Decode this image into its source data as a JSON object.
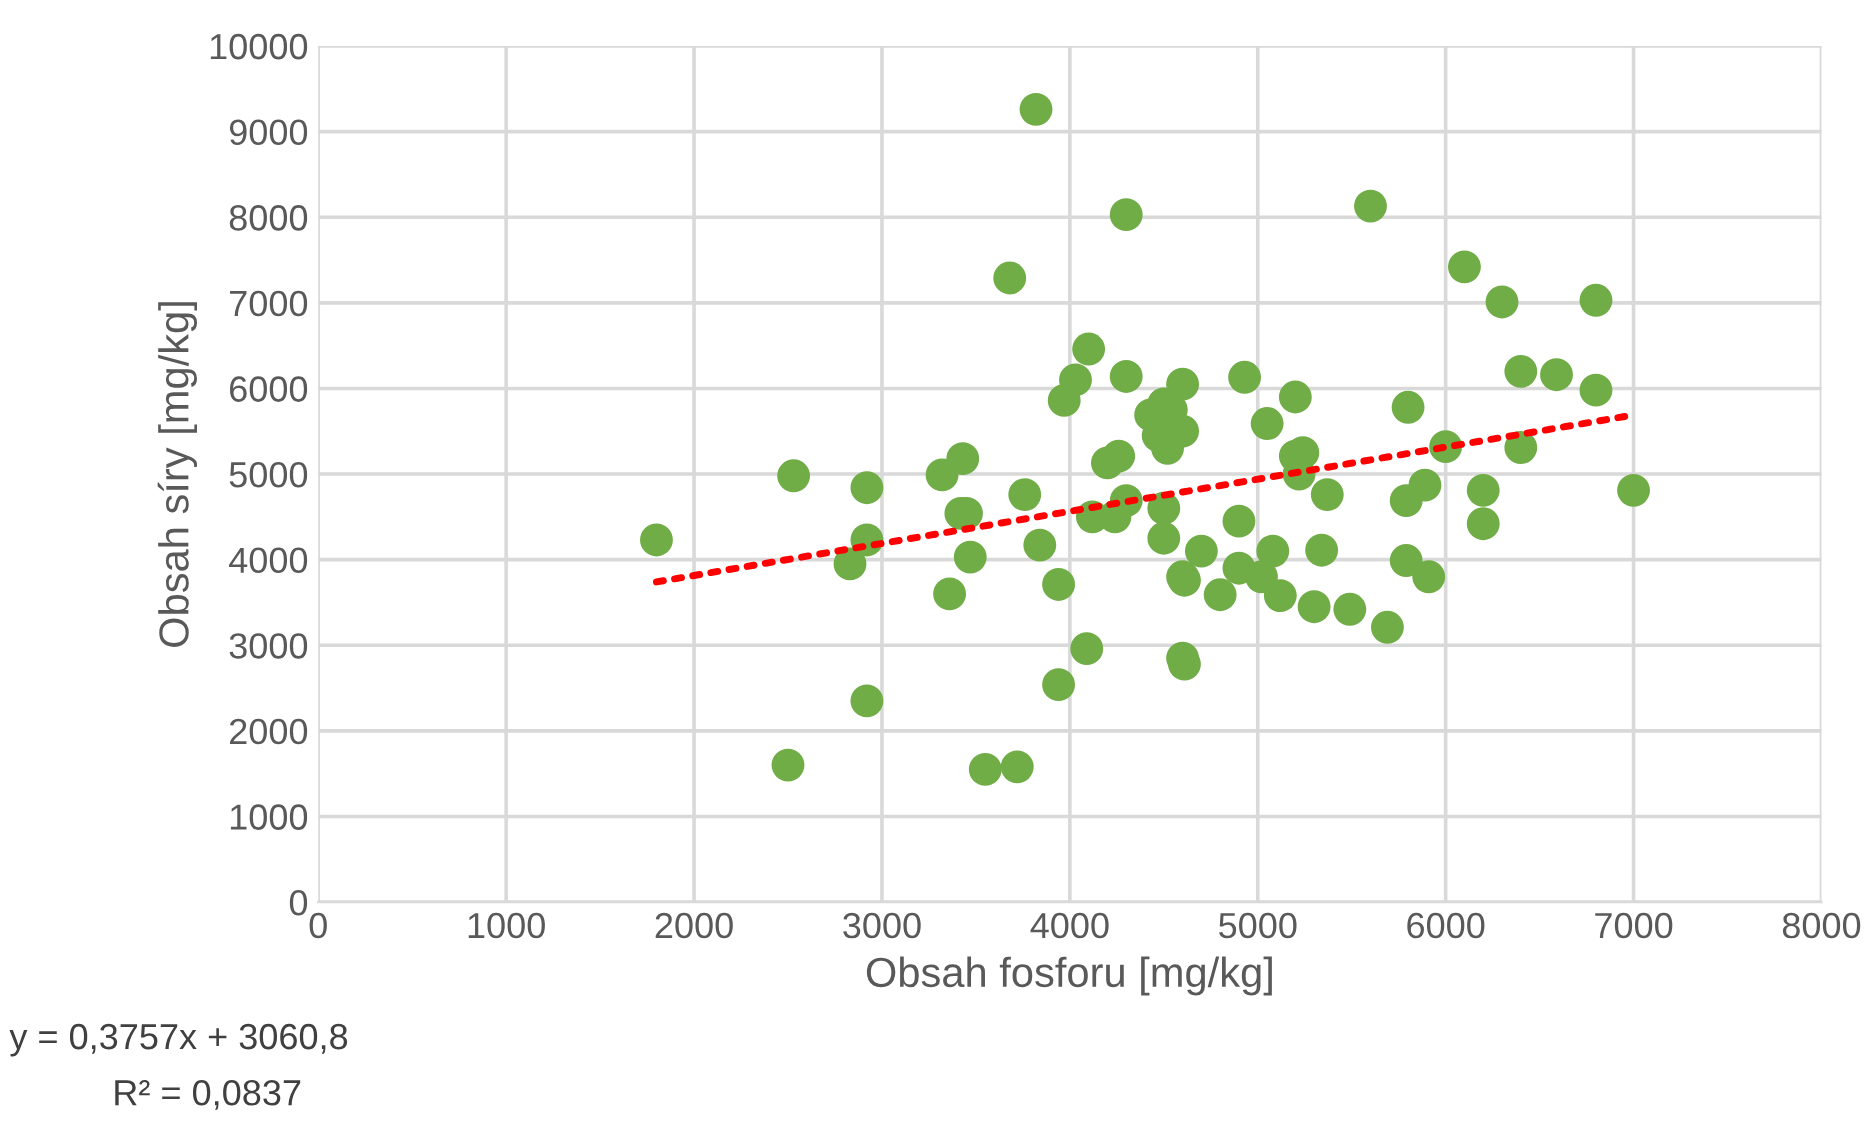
{
  "chart_data": {
    "type": "scatter",
    "xlabel": "Obsah fosforu [mg/kg]",
    "ylabel": "Obsah síry [mg/kg]",
    "xlim": [
      0,
      8000
    ],
    "xticks": [
      0,
      1000,
      2000,
      3000,
      4000,
      5000,
      6000,
      7000,
      8000
    ],
    "ylim": [
      0,
      10000
    ],
    "yticks": [
      0,
      1000,
      2000,
      3000,
      4000,
      5000,
      6000,
      7000,
      8000,
      9000,
      10000
    ],
    "grid": true,
    "legend": false,
    "marker": "circle",
    "annotations": [
      "y = 0,3757x + 3060,8",
      "R² = 0,0837"
    ],
    "series": [
      {
        "color": "#70ad47",
        "x": [
          1800,
          2500,
          2530,
          2830,
          2920,
          2920,
          2920,
          3320,
          3360,
          3420,
          3430,
          3450,
          3470,
          3550,
          3680,
          3720,
          3760,
          3820,
          3840,
          3940,
          3940,
          3970,
          4030,
          4090,
          4100,
          4120,
          4200,
          4240,
          4260,
          4300,
          4300,
          4300,
          4430,
          4470,
          4500,
          4500,
          4500,
          4520,
          4540,
          4600,
          4600,
          4600,
          4610,
          4600,
          4610,
          4700,
          4800,
          4900,
          4900,
          4930,
          5020,
          5050,
          5080,
          5120,
          5200,
          5200,
          5220,
          5240,
          5300,
          5340,
          5370,
          5490,
          5600,
          5690,
          5790,
          5790,
          5800,
          5890,
          5910,
          6000,
          6100,
          6200,
          6200,
          6300,
          6400,
          6400,
          6590,
          6800,
          6800,
          7000
        ],
        "values": [
          4230,
          1600,
          4980,
          3950,
          4840,
          4230,
          2350,
          4990,
          3600,
          4540,
          5180,
          4540,
          4030,
          1550,
          7290,
          1580,
          4760,
          9260,
          4170,
          3710,
          2540,
          5860,
          6100,
          2960,
          6460,
          4500,
          5130,
          4500,
          5210,
          8030,
          6140,
          4690,
          5690,
          5450,
          5820,
          4600,
          4250,
          5300,
          5750,
          5500,
          6050,
          3800,
          3760,
          2850,
          2780,
          4100,
          3590,
          3900,
          4450,
          6130,
          3800,
          5590,
          4100,
          3580,
          5900,
          5210,
          5000,
          5250,
          3450,
          4110,
          4760,
          3420,
          8130,
          3210,
          3990,
          4690,
          5780,
          4870,
          3800,
          5320,
          7420,
          4810,
          4420,
          7010,
          6200,
          5310,
          6160,
          7030,
          5980,
          4810
        ]
      },
      {
        "type": "line",
        "color": "#ff0000",
        "line_style": "dotted",
        "marker": "none",
        "x": [
          1800,
          7000
        ],
        "values": [
          3740,
          5690
        ]
      }
    ]
  }
}
